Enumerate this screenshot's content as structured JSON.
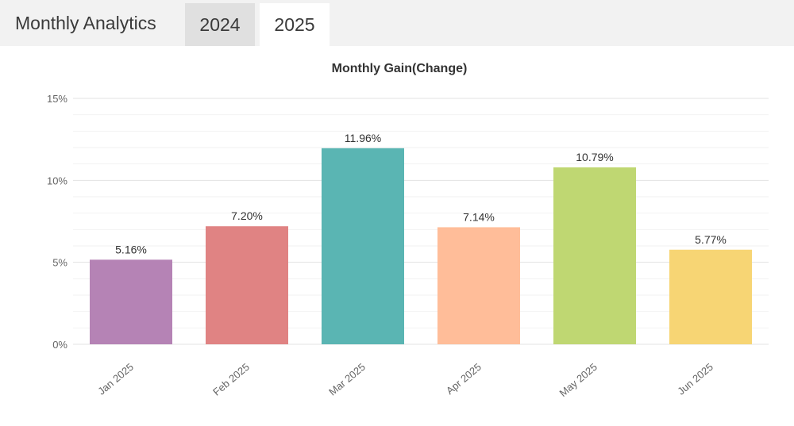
{
  "header": {
    "title": "Monthly Analytics",
    "tabs": [
      {
        "label": "2024",
        "active": false
      },
      {
        "label": "2025",
        "active": true
      }
    ]
  },
  "chart_data": {
    "type": "bar",
    "title": "Monthly Gain(Change)",
    "xlabel": "",
    "ylabel": "",
    "categories": [
      "Jan 2025",
      "Feb 2025",
      "Mar 2025",
      "Apr 2025",
      "May 2025",
      "Jun 2025"
    ],
    "values": [
      5.16,
      7.2,
      11.96,
      7.14,
      10.79,
      5.77
    ],
    "value_labels": [
      "5.16%",
      "7.20%",
      "11.96%",
      "7.14%",
      "10.79%",
      "5.77%"
    ],
    "colors": [
      "#b583b5",
      "#e08383",
      "#5ab5b3",
      "#ffbd99",
      "#bfd772",
      "#f7d574"
    ],
    "ylim": [
      0,
      15
    ],
    "yticks": [
      {
        "value": 0,
        "label": "0%"
      },
      {
        "value": 5,
        "label": "5%"
      },
      {
        "value": 10,
        "label": "10%"
      },
      {
        "value": 15,
        "label": "15%"
      }
    ],
    "grid": true,
    "legend": "none"
  }
}
